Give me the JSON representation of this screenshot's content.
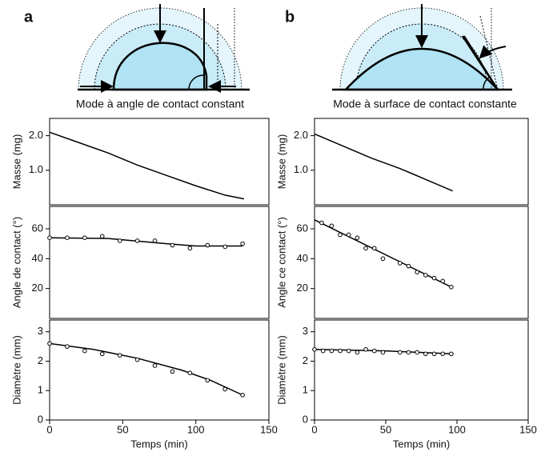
{
  "panels": [
    {
      "label": "a",
      "caption": "Mode à angle de contact constant"
    },
    {
      "label": "b",
      "caption": "Mode à surface de contact constante"
    }
  ],
  "chart_data": [
    {
      "type": "line",
      "ylabel": "Masse (mg)",
      "xlim": [
        0,
        150
      ],
      "ylim": [
        0,
        2.5
      ],
      "yticks": [
        {
          "value": 1,
          "label": "1.0"
        },
        {
          "value": 2,
          "label": "2.0"
        }
      ],
      "series": [
        {
          "style": "line",
          "color": "#000000",
          "x": [
            0,
            20,
            40,
            60,
            80,
            100,
            120,
            133
          ],
          "values": [
            2.1,
            1.8,
            1.5,
            1.15,
            0.85,
            0.55,
            0.28,
            0.17
          ]
        }
      ]
    },
    {
      "type": "line",
      "ylabel": "Angle de contact (°)",
      "xlim": [
        0,
        150
      ],
      "ylim": [
        0,
        75
      ],
      "yticks": [
        20,
        40,
        60
      ],
      "series": [
        {
          "style": "line",
          "color": "#000000",
          "x": [
            0,
            40,
            80,
            100,
            132
          ],
          "values": [
            54,
            53.5,
            50,
            48.5,
            48.5
          ]
        },
        {
          "style": "markers",
          "color": "#000000",
          "x": [
            0,
            12,
            24,
            36,
            48,
            60,
            72,
            84,
            96,
            108,
            120,
            132
          ],
          "values": [
            54,
            54,
            54,
            55,
            52,
            52,
            52,
            49,
            47,
            49,
            48,
            50
          ]
        }
      ]
    },
    {
      "type": "line",
      "ylabel": "Diamètre (mm)",
      "xlabel": "Temps (min)",
      "xlim": [
        0,
        150
      ],
      "ylim": [
        0,
        3.4
      ],
      "xticks": [
        0,
        50,
        100,
        150
      ],
      "yticks": [
        0,
        1,
        2,
        3
      ],
      "series": [
        {
          "style": "line",
          "color": "#000000",
          "x": [
            0,
            30,
            60,
            90,
            110,
            132
          ],
          "values": [
            2.6,
            2.4,
            2.1,
            1.7,
            1.35,
            0.85
          ]
        },
        {
          "style": "markers",
          "color": "#000000",
          "x": [
            0,
            12,
            24,
            36,
            48,
            60,
            72,
            84,
            96,
            108,
            120,
            132
          ],
          "values": [
            2.6,
            2.5,
            2.35,
            2.25,
            2.2,
            2.05,
            1.85,
            1.65,
            1.6,
            1.35,
            1.05,
            0.85
          ]
        }
      ]
    },
    {
      "type": "line",
      "ylabel": "Masse (mg)",
      "xlim": [
        0,
        150
      ],
      "ylim": [
        0,
        2.5
      ],
      "yticks": [
        {
          "value": 1,
          "label": "1.0"
        },
        {
          "value": 2,
          "label": "2.0"
        }
      ],
      "series": [
        {
          "style": "line",
          "color": "#000000",
          "x": [
            0,
            20,
            40,
            60,
            80,
            97
          ],
          "values": [
            2.05,
            1.7,
            1.35,
            1.05,
            0.7,
            0.4
          ]
        }
      ]
    },
    {
      "type": "line",
      "ylabel": "Angle ce contact (°)",
      "xlim": [
        0,
        150
      ],
      "ylim": [
        0,
        75
      ],
      "yticks": [
        20,
        40,
        60
      ],
      "series": [
        {
          "style": "line",
          "color": "#000000",
          "x": [
            0,
            96
          ],
          "values": [
            66,
            21
          ]
        },
        {
          "style": "markers",
          "color": "#000000",
          "x": [
            5,
            12,
            18,
            24,
            30,
            36,
            42,
            48,
            60,
            66,
            72,
            78,
            84,
            90,
            96
          ],
          "values": [
            64,
            62,
            56,
            56,
            54,
            47,
            47,
            40,
            37,
            35,
            31,
            29,
            27,
            25,
            21
          ]
        }
      ]
    },
    {
      "type": "line",
      "ylabel": "Diamètre (mm)",
      "xlabel": "Temps (min)",
      "xlim": [
        0,
        150
      ],
      "ylim": [
        0,
        3.4
      ],
      "xticks": [
        0,
        50,
        100,
        150
      ],
      "yticks": [
        0,
        1,
        2,
        3
      ],
      "series": [
        {
          "style": "line",
          "color": "#000000",
          "x": [
            0,
            50,
            96
          ],
          "values": [
            2.4,
            2.35,
            2.25
          ]
        },
        {
          "style": "markers",
          "color": "#000000",
          "x": [
            0,
            6,
            12,
            18,
            24,
            30,
            36,
            42,
            48,
            60,
            66,
            72,
            78,
            84,
            90,
            96
          ],
          "values": [
            2.4,
            2.35,
            2.35,
            2.35,
            2.35,
            2.3,
            2.4,
            2.35,
            2.3,
            2.3,
            2.3,
            2.3,
            2.25,
            2.25,
            2.25,
            2.25
          ]
        }
      ]
    }
  ]
}
